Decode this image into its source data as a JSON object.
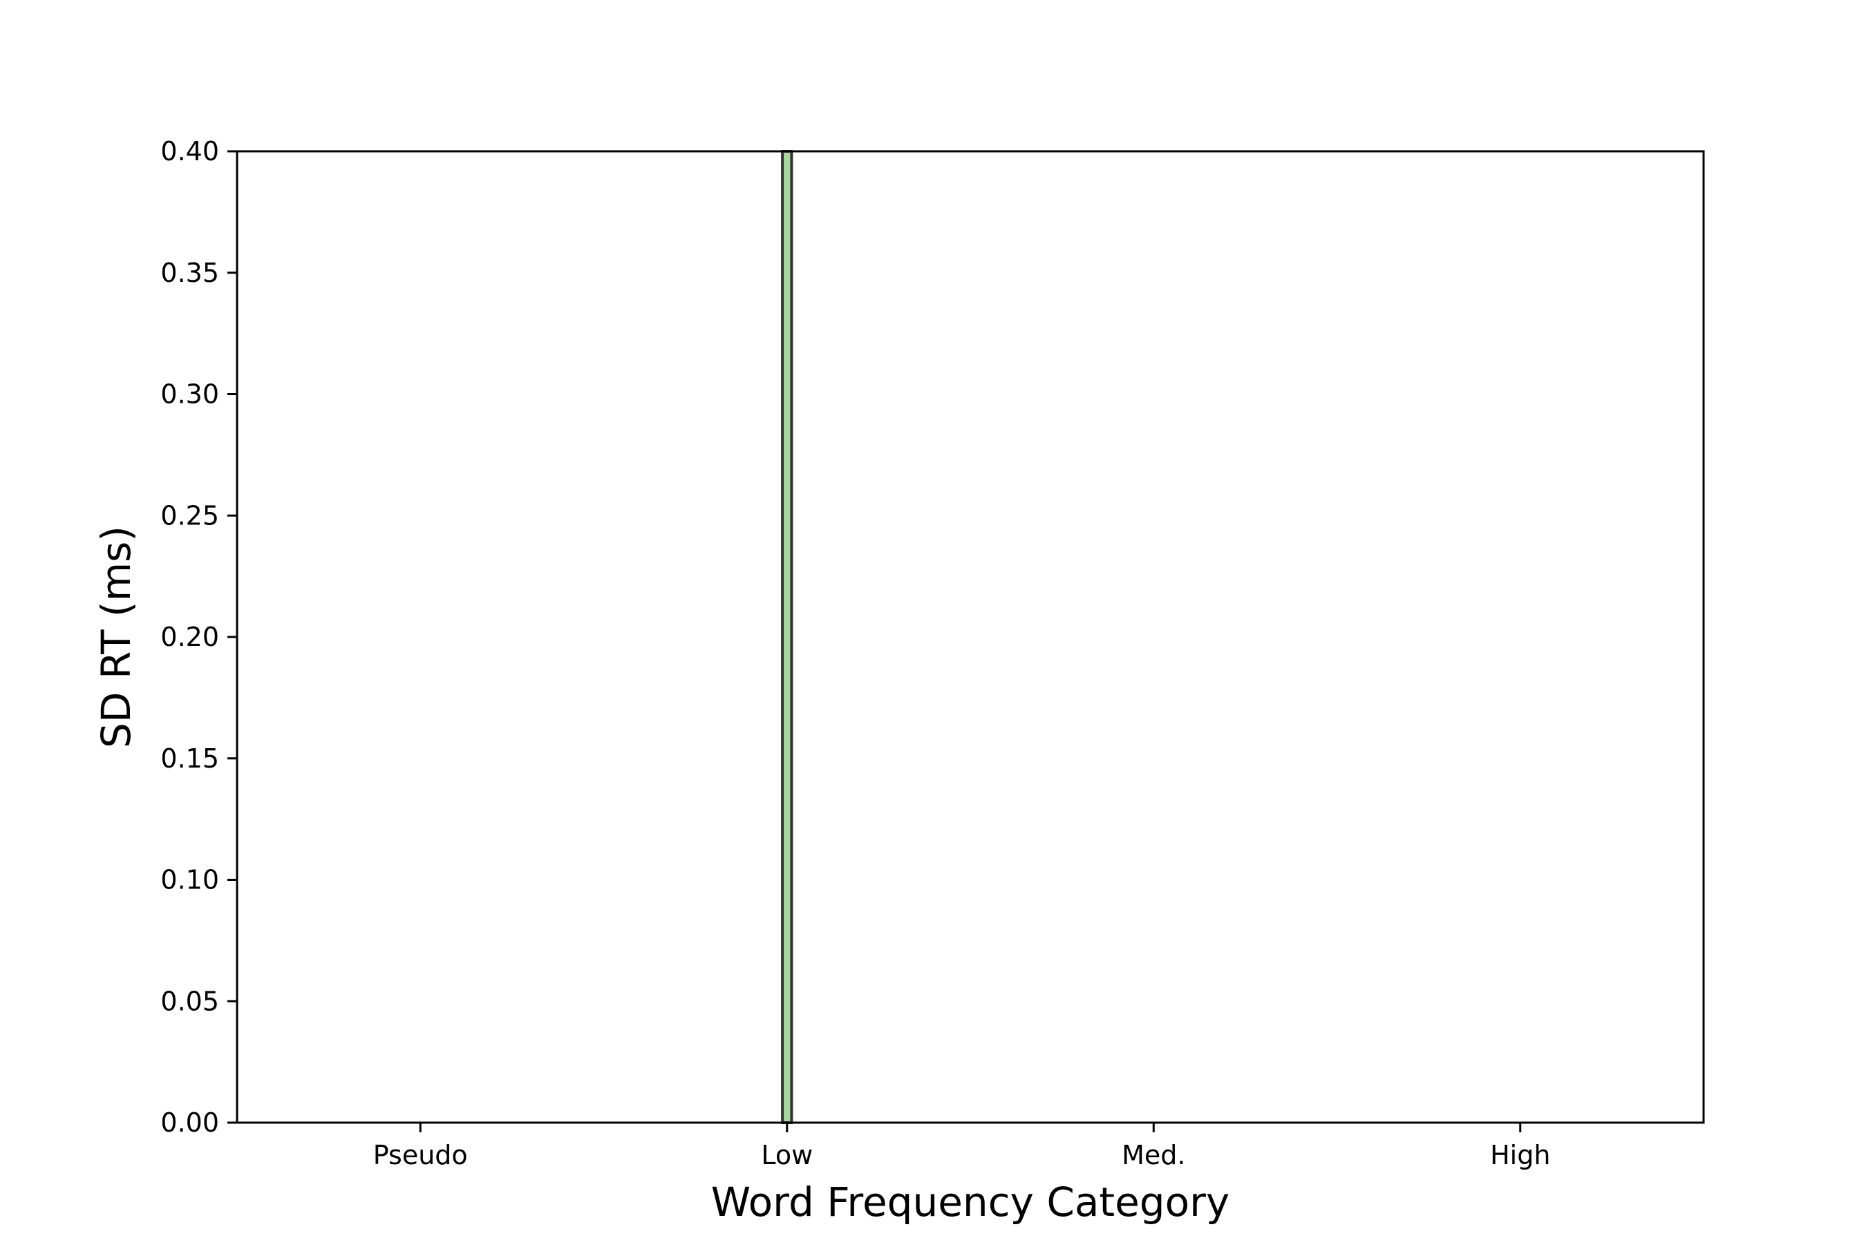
{
  "chart_data": {
    "type": "bar",
    "title": "",
    "xlabel": "Word Frequency Category",
    "ylabel": "SD RT (ms)",
    "categories": [
      "Pseudo",
      "Low",
      "Med.",
      "High"
    ],
    "x_ticks": [
      0,
      1,
      2,
      3
    ],
    "series": [
      {
        "bars": [
          {
            "x": 1.0,
            "value": 0.4
          }
        ],
        "color": "#a8d8a0",
        "edge_color": "#333333"
      }
    ],
    "ylim": [
      0,
      0.4
    ],
    "y_ticks": [
      "0.00",
      "0.05",
      "0.10",
      "0.15",
      "0.20",
      "0.25",
      "0.30",
      "0.35",
      "0.40"
    ],
    "grid": false,
    "legend": "none"
  }
}
